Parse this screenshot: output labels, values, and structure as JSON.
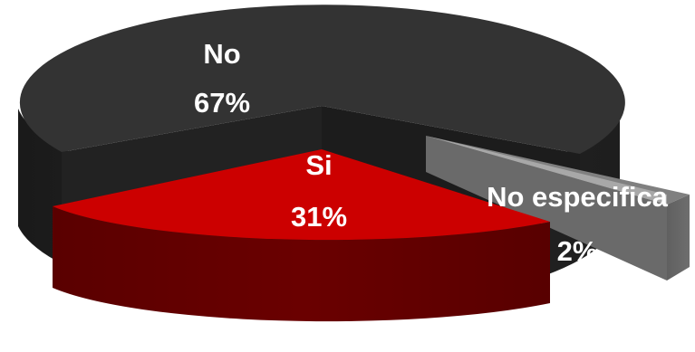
{
  "chart_data": {
    "type": "pie",
    "style": "3d-exploded",
    "slices": [
      {
        "label": "No",
        "percent_label": "67%",
        "value": 67,
        "color": "#333333"
      },
      {
        "label": "Si",
        "percent_label": "31%",
        "value": 31,
        "color": "#cc0000"
      },
      {
        "label": "No especifica",
        "percent_label": "2%",
        "value": 2,
        "color": "#808080"
      }
    ]
  }
}
